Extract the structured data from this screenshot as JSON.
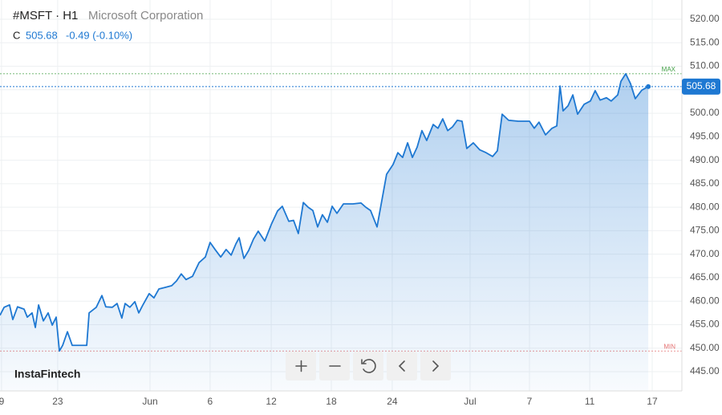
{
  "header": {
    "symbol": "#MSFT · H1",
    "company": "Microsoft Corporation",
    "close_label": "C",
    "change": "-0.49 (-0.10%)",
    "brand": "InstaFintech"
  },
  "chart_data": {
    "type": "area",
    "color": "#1e78d2",
    "x": [
      0,
      1.9,
      4.4,
      5.9,
      8.1,
      11.1,
      12.6,
      14.8,
      16.3,
      17.8,
      20.0,
      22.2,
      24.1,
      25.9,
      27.4,
      28.9,
      31.1,
      33.3,
      37.0,
      40.0,
      41.1,
      44.4,
      47.0,
      48.8,
      51.8,
      54.0,
      56.2,
      57.7,
      59.9,
      62.2,
      64.0,
      65.9,
      68.8,
      71.0,
      73.3,
      75.9,
      79.2,
      81.4,
      83.6,
      85.8,
      88.8,
      91.8,
      94.7,
      96.9,
      99.2,
      101.8,
      104.3,
      106.6,
      108.8,
      110.3,
      112.5,
      114.7,
      116.9,
      119.1,
      122.1,
      125.1,
      128.0,
      130.2,
      133.2,
      135.4,
      137.6,
      139.9,
      142.1,
      144.3,
      146.5,
      148.7,
      151.0,
      153.2,
      155.4,
      158.4,
      162.8,
      166.5,
      168.7,
      170.9,
      173.9,
      176.1,
      178.3,
      181.3,
      183.5,
      185.7,
      188.0,
      190.2,
      192.4,
      194.6,
      196.8,
      199.8,
      202.0,
      204.2,
      206.5,
      208.7,
      210.9,
      213.1,
      215.3,
      218.3,
      221.3,
      224.2,
      227.2,
      229.4,
      231.6,
      234.6,
      239.0,
      244.2,
      246.4,
      248.6,
      251.6,
      254.6,
      256.8,
      258.3,
      259.7,
      262.0,
      264.2,
      266.4,
      269.4,
      272.3,
      274.5,
      276.8,
      279.7,
      281.9,
      284.9,
      286.4,
      288.6,
      290.8,
      293.0,
      296.0,
      299.0
    ],
    "series": [
      {
        "name": "MSFT",
        "color": "#1e78d2",
        "values": [
          457.0,
          458.7,
          459.2,
          456.1,
          458.8,
          458.3,
          456.6,
          457.5,
          454.4,
          459.2,
          455.8,
          457.5,
          454.9,
          456.6,
          449.4,
          450.6,
          453.5,
          450.6,
          450.6,
          450.6,
          457.5,
          458.7,
          461.2,
          458.8,
          458.7,
          459.5,
          456.4,
          459.5,
          458.7,
          459.9,
          457.5,
          459.2,
          461.6,
          460.7,
          462.6,
          462.9,
          463.3,
          464.3,
          465.8,
          464.6,
          465.3,
          468.2,
          469.4,
          472.5,
          471.0,
          469.4,
          471.0,
          469.8,
          472.2,
          473.5,
          469.1,
          470.8,
          473.2,
          474.9,
          472.8,
          476.3,
          479.2,
          480.2,
          477.0,
          477.2,
          474.4,
          481.0,
          480.0,
          479.3,
          475.8,
          478.4,
          476.8,
          480.2,
          478.7,
          480.7,
          480.7,
          480.9,
          480.0,
          479.3,
          475.8,
          481.4,
          487.0,
          489.1,
          491.6,
          490.6,
          493.7,
          490.6,
          492.8,
          496.3,
          494.2,
          497.6,
          496.8,
          498.8,
          496.3,
          497.1,
          498.5,
          498.3,
          492.5,
          493.7,
          492.2,
          491.6,
          490.8,
          492.0,
          499.8,
          498.5,
          498.3,
          498.3,
          496.8,
          498.1,
          495.4,
          496.8,
          497.3,
          505.8,
          500.5,
          501.6,
          503.9,
          499.8,
          501.9,
          502.6,
          504.8,
          502.8,
          503.3,
          502.6,
          503.9,
          506.8,
          508.4,
          506.3,
          503.1,
          504.9,
          505.68
        ]
      }
    ],
    "last_price": 505.68,
    "reference_lines": [
      {
        "label": "MAX",
        "value": 508.4,
        "color": "#43a047"
      },
      {
        "label": "MIN",
        "value": 449.4,
        "color": "#e57373"
      }
    ],
    "xlim": [
      0,
      314.5
    ],
    "xticks": [
      {
        "value": 0.7,
        "label": "9"
      },
      {
        "value": 26.6,
        "label": "23"
      },
      {
        "value": 69.2,
        "label": "Jun"
      },
      {
        "value": 96.9,
        "label": "6"
      },
      {
        "value": 125.1,
        "label": "12"
      },
      {
        "value": 152.8,
        "label": "18"
      },
      {
        "value": 180.9,
        "label": "24"
      },
      {
        "value": 216.8,
        "label": "Jul"
      },
      {
        "value": 244.2,
        "label": "7"
      },
      {
        "value": 272.0,
        "label": "11"
      },
      {
        "value": 300.8,
        "label": "17"
      }
    ],
    "ylim": [
      440.9,
      524.1
    ],
    "yticks": [
      {
        "value": 445,
        "label": "445.00"
      },
      {
        "value": 450,
        "label": "450.00"
      },
      {
        "value": 455,
        "label": "455.00"
      },
      {
        "value": 460,
        "label": "460.00"
      },
      {
        "value": 465,
        "label": "465.00"
      },
      {
        "value": 470,
        "label": "470.00"
      },
      {
        "value": 475,
        "label": "475.00"
      },
      {
        "value": 480,
        "label": "480.00"
      },
      {
        "value": 485,
        "label": "485.00"
      },
      {
        "value": 490,
        "label": "490.00"
      },
      {
        "value": 495,
        "label": "495.00"
      },
      {
        "value": 500,
        "label": "500.00"
      },
      {
        "value": 505,
        "label": "505.00"
      },
      {
        "value": 510,
        "label": "510.00"
      },
      {
        "value": 515,
        "label": "515.00"
      },
      {
        "value": 520,
        "label": "520.00"
      }
    ],
    "grid": true
  }
}
